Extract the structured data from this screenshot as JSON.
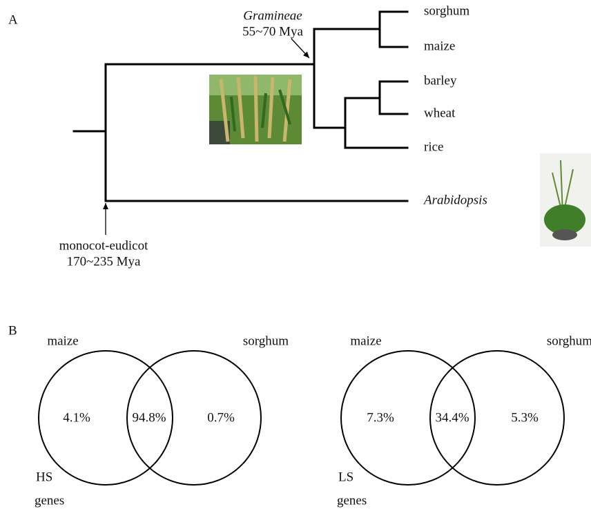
{
  "panel_a": {
    "label": "A",
    "leaves": [
      "sorghum",
      "maize",
      "barley",
      "wheat",
      "rice",
      "Arabidopsis"
    ],
    "gramineae": {
      "name": "Gramineae",
      "age": "55~70 Mya"
    },
    "divergence": {
      "name": "monocot-eudicot",
      "age": "170~235 Mya"
    }
  },
  "panel_b": {
    "label": "B",
    "venns": [
      {
        "left": "maize",
        "right": "sorghum",
        "left_only": "4.1%",
        "overlap": "94.8%",
        "right_only": "0.7%",
        "set": "HS",
        "unit": "genes"
      },
      {
        "left": "maize",
        "right": "sorghum",
        "left_only": "7.3%",
        "overlap": "34.4%",
        "right_only": "5.3%",
        "set": "LS",
        "unit": "genes"
      }
    ]
  }
}
